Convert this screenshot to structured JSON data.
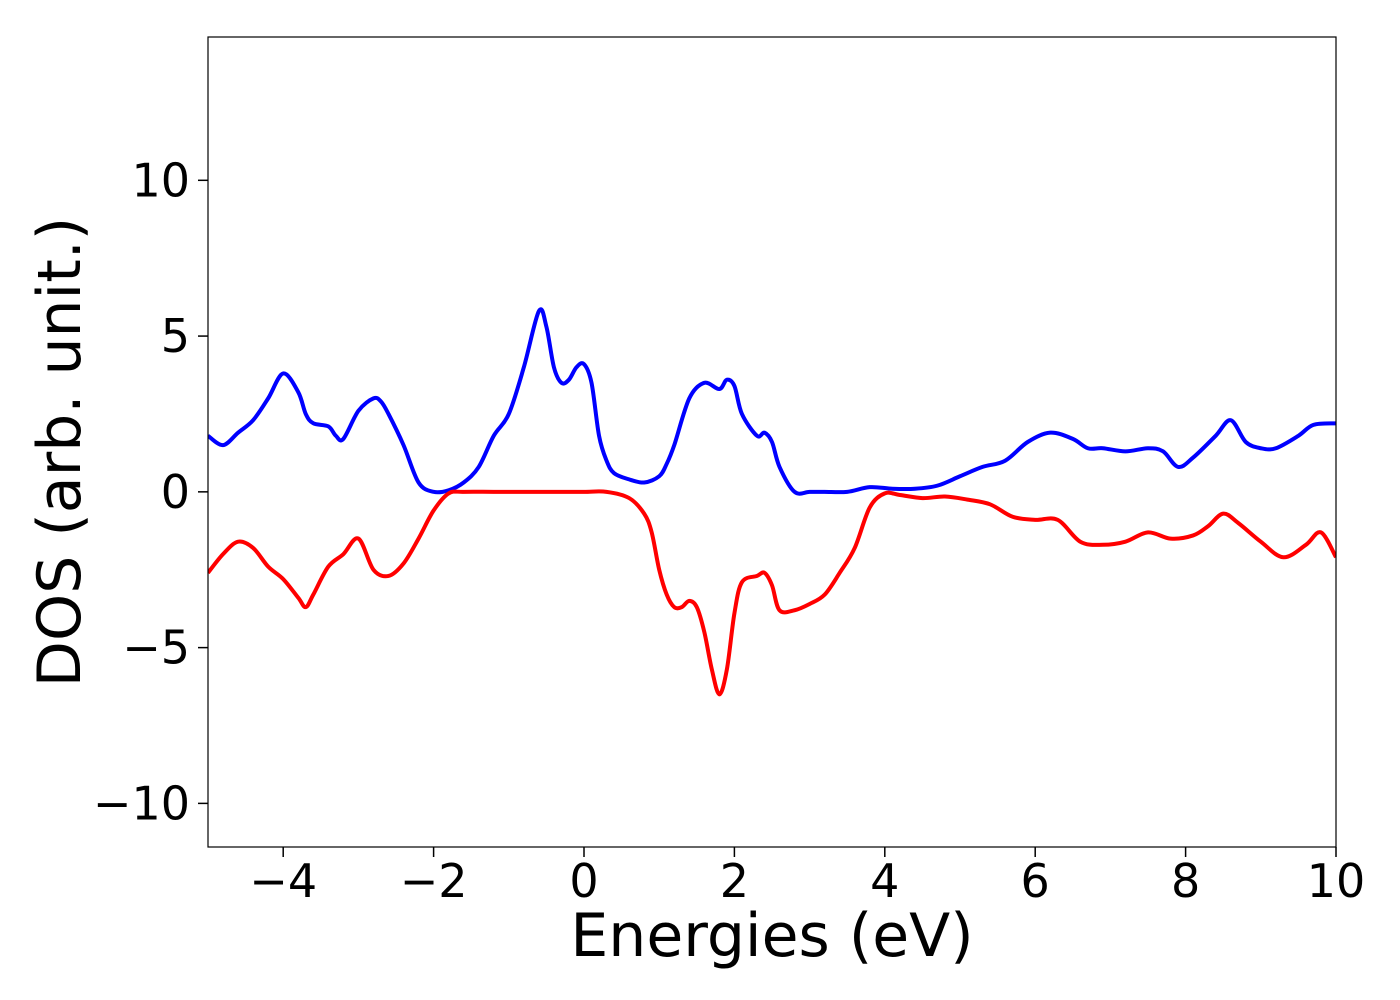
{
  "chart_data": {
    "type": "line",
    "title": "",
    "xlabel": "Energies (eV)",
    "ylabel": "DOS (arb. unit.)",
    "xlim": [
      -5,
      10
    ],
    "ylim": [
      -11.4,
      14.6
    ],
    "xticks": [
      "−4",
      "−2",
      "0",
      "2",
      "4",
      "6",
      "8",
      "10"
    ],
    "xtick_values": [
      -4,
      -2,
      0,
      2,
      4,
      6,
      8,
      10
    ],
    "yticks": [
      "−10",
      "−5",
      "0",
      "5",
      "10"
    ],
    "ytick_values": [
      -10,
      -5,
      0,
      5,
      10
    ],
    "grid": false,
    "series": [
      {
        "color": "#0000ff",
        "x": [
          -5.0,
          -4.8,
          -4.6,
          -4.4,
          -4.2,
          -4.0,
          -3.8,
          -3.7,
          -3.6,
          -3.4,
          -3.3,
          -3.2,
          -3.0,
          -2.8,
          -2.7,
          -2.6,
          -2.4,
          -2.2,
          -2.0,
          -1.8,
          -1.6,
          -1.4,
          -1.2,
          -1.0,
          -0.8,
          -0.6,
          -0.5,
          -0.4,
          -0.3,
          -0.2,
          -0.1,
          0.0,
          0.1,
          0.2,
          0.3,
          0.4,
          0.6,
          0.8,
          1.0,
          1.1,
          1.2,
          1.4,
          1.6,
          1.8,
          1.9,
          2.0,
          2.1,
          2.3,
          2.4,
          2.5,
          2.6,
          2.8,
          3.0,
          3.2,
          3.5,
          3.8,
          4.1,
          4.4,
          4.7,
          5.0,
          5.3,
          5.6,
          5.9,
          6.2,
          6.5,
          6.7,
          6.9,
          7.2,
          7.5,
          7.7,
          7.9,
          8.1,
          8.4,
          8.6,
          8.8,
          9.0,
          9.2,
          9.5,
          9.7,
          10.0
        ],
        "y": [
          1.8,
          1.5,
          1.9,
          2.3,
          3.0,
          3.8,
          3.2,
          2.5,
          2.2,
          2.1,
          1.8,
          1.7,
          2.6,
          3.0,
          2.9,
          2.5,
          1.5,
          0.3,
          0.0,
          0.05,
          0.3,
          0.8,
          1.8,
          2.5,
          4.0,
          5.8,
          5.3,
          4.0,
          3.5,
          3.6,
          4.0,
          4.1,
          3.5,
          1.8,
          1.0,
          0.6,
          0.4,
          0.3,
          0.5,
          0.9,
          1.5,
          3.0,
          3.5,
          3.3,
          3.6,
          3.4,
          2.5,
          1.8,
          1.9,
          1.6,
          0.8,
          0.0,
          0.0,
          0.0,
          0.0,
          0.15,
          0.1,
          0.1,
          0.2,
          0.5,
          0.8,
          1.0,
          1.6,
          1.9,
          1.7,
          1.4,
          1.4,
          1.3,
          1.4,
          1.3,
          0.8,
          1.1,
          1.8,
          2.3,
          1.6,
          1.4,
          1.4,
          1.8,
          2.15,
          2.2
        ]
      },
      {
        "color": "#ff0000",
        "x": [
          -5.0,
          -4.8,
          -4.6,
          -4.4,
          -4.2,
          -4.0,
          -3.8,
          -3.7,
          -3.6,
          -3.4,
          -3.2,
          -3.0,
          -2.8,
          -2.6,
          -2.4,
          -2.2,
          -2.0,
          -1.8,
          -1.6,
          -1.2,
          -0.8,
          -0.4,
          0.0,
          0.3,
          0.6,
          0.8,
          0.9,
          1.0,
          1.1,
          1.2,
          1.3,
          1.4,
          1.5,
          1.6,
          1.7,
          1.8,
          1.9,
          2.0,
          2.1,
          2.3,
          2.4,
          2.5,
          2.6,
          2.8,
          3.0,
          3.2,
          3.4,
          3.6,
          3.8,
          4.0,
          4.2,
          4.5,
          4.8,
          5.1,
          5.4,
          5.7,
          6.0,
          6.3,
          6.6,
          6.9,
          7.2,
          7.5,
          7.8,
          8.1,
          8.3,
          8.5,
          8.7,
          9.0,
          9.3,
          9.6,
          9.8,
          10.0
        ],
        "y": [
          -2.6,
          -2.0,
          -1.6,
          -1.8,
          -2.4,
          -2.8,
          -3.4,
          -3.7,
          -3.3,
          -2.4,
          -2.0,
          -1.5,
          -2.5,
          -2.7,
          -2.3,
          -1.5,
          -0.6,
          -0.05,
          0.0,
          0.0,
          0.0,
          0.0,
          0.0,
          0.0,
          -0.2,
          -0.7,
          -1.3,
          -2.5,
          -3.3,
          -3.7,
          -3.7,
          -3.5,
          -3.7,
          -4.5,
          -5.7,
          -6.5,
          -5.7,
          -3.9,
          -2.9,
          -2.7,
          -2.6,
          -3.0,
          -3.8,
          -3.8,
          -3.6,
          -3.3,
          -2.6,
          -1.8,
          -0.5,
          -0.05,
          -0.1,
          -0.2,
          -0.15,
          -0.25,
          -0.4,
          -0.8,
          -0.9,
          -0.9,
          -1.6,
          -1.7,
          -1.6,
          -1.3,
          -1.5,
          -1.4,
          -1.1,
          -0.7,
          -1.0,
          -1.6,
          -2.1,
          -1.7,
          -1.3,
          -2.1
        ]
      }
    ]
  }
}
